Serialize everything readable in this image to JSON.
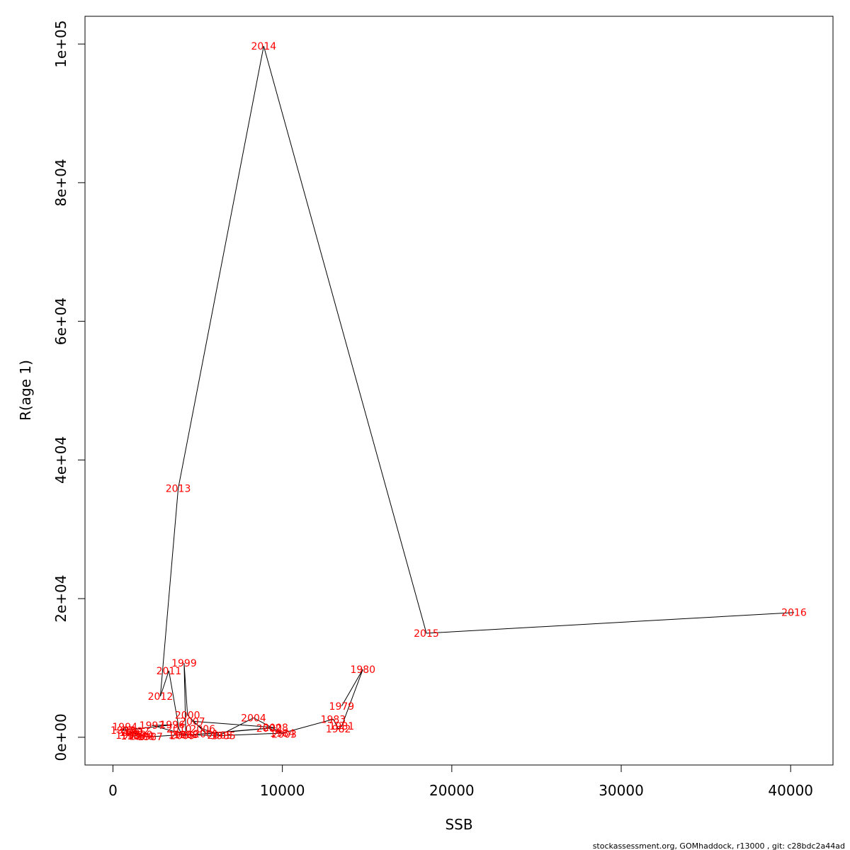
{
  "chart_data": {
    "type": "line",
    "xlabel": "SSB",
    "ylabel": "R(age 1)",
    "xlim": [
      -1650,
      42500
    ],
    "ylim": [
      -4000,
      104000
    ],
    "xticks": [
      0,
      10000,
      20000,
      30000,
      40000
    ],
    "xtick_labels": [
      "0",
      "10000",
      "20000",
      "30000",
      "40000"
    ],
    "yticks": [
      0,
      20000,
      40000,
      60000,
      80000,
      100000
    ],
    "ytick_labels": [
      "0e+00",
      "2e+04",
      "4e+04",
      "6e+04",
      "8e+04",
      "1e+05"
    ],
    "grid": false,
    "line_color": "#000000",
    "label_color": "#ff0000",
    "points": [
      {
        "year": "1979",
        "x": 13500,
        "y": 4500
      },
      {
        "year": "1980",
        "x": 14750,
        "y": 9800
      },
      {
        "year": "1981",
        "x": 13500,
        "y": 1600
      },
      {
        "year": "1982",
        "x": 13300,
        "y": 1200
      },
      {
        "year": "1983",
        "x": 13000,
        "y": 2600
      },
      {
        "year": "1984",
        "x": 10000,
        "y": 600
      },
      {
        "year": "1985",
        "x": 6500,
        "y": 250
      },
      {
        "year": "1986",
        "x": 4000,
        "y": 350
      },
      {
        "year": "1987",
        "x": 2200,
        "y": 80
      },
      {
        "year": "1988",
        "x": 1700,
        "y": 150
      },
      {
        "year": "1989",
        "x": 1200,
        "y": 200
      },
      {
        "year": "1990",
        "x": 1600,
        "y": 400
      },
      {
        "year": "1991",
        "x": 1100,
        "y": 700
      },
      {
        "year": "1992",
        "x": 1400,
        "y": 900
      },
      {
        "year": "1993",
        "x": 900,
        "y": 300
      },
      {
        "year": "1994",
        "x": 700,
        "y": 1500
      },
      {
        "year": "1995",
        "x": 600,
        "y": 1000
      },
      {
        "year": "1996",
        "x": 3500,
        "y": 1800
      },
      {
        "year": "1997",
        "x": 2300,
        "y": 1700
      },
      {
        "year": "1998",
        "x": 4300,
        "y": 400
      },
      {
        "year": "1999",
        "x": 4200,
        "y": 10700
      },
      {
        "year": "2000",
        "x": 4400,
        "y": 3200
      },
      {
        "year": "2001",
        "x": 5500,
        "y": 500
      },
      {
        "year": "2002",
        "x": 9200,
        "y": 1300
      },
      {
        "year": "2003",
        "x": 10100,
        "y": 450
      },
      {
        "year": "2004",
        "x": 8300,
        "y": 2800
      },
      {
        "year": "2005",
        "x": 6300,
        "y": 300
      },
      {
        "year": "2006",
        "x": 5300,
        "y": 1200
      },
      {
        "year": "2007",
        "x": 4700,
        "y": 2300
      },
      {
        "year": "2008",
        "x": 9600,
        "y": 1400
      },
      {
        "year": "2009",
        "x": 4100,
        "y": 250
      },
      {
        "year": "2010",
        "x": 3900,
        "y": 1200
      },
      {
        "year": "2011",
        "x": 3300,
        "y": 9600
      },
      {
        "year": "2012",
        "x": 2800,
        "y": 5900
      },
      {
        "year": "2013",
        "x": 3850,
        "y": 35900
      },
      {
        "year": "2014",
        "x": 8900,
        "y": 99700
      },
      {
        "year": "2015",
        "x": 18500,
        "y": 15000
      },
      {
        "year": "2016",
        "x": 40200,
        "y": 18000
      }
    ]
  },
  "footer": {
    "text": "stockassessment.org, GOMhaddock, r13000 , git: c28bdc2a44ad"
  }
}
